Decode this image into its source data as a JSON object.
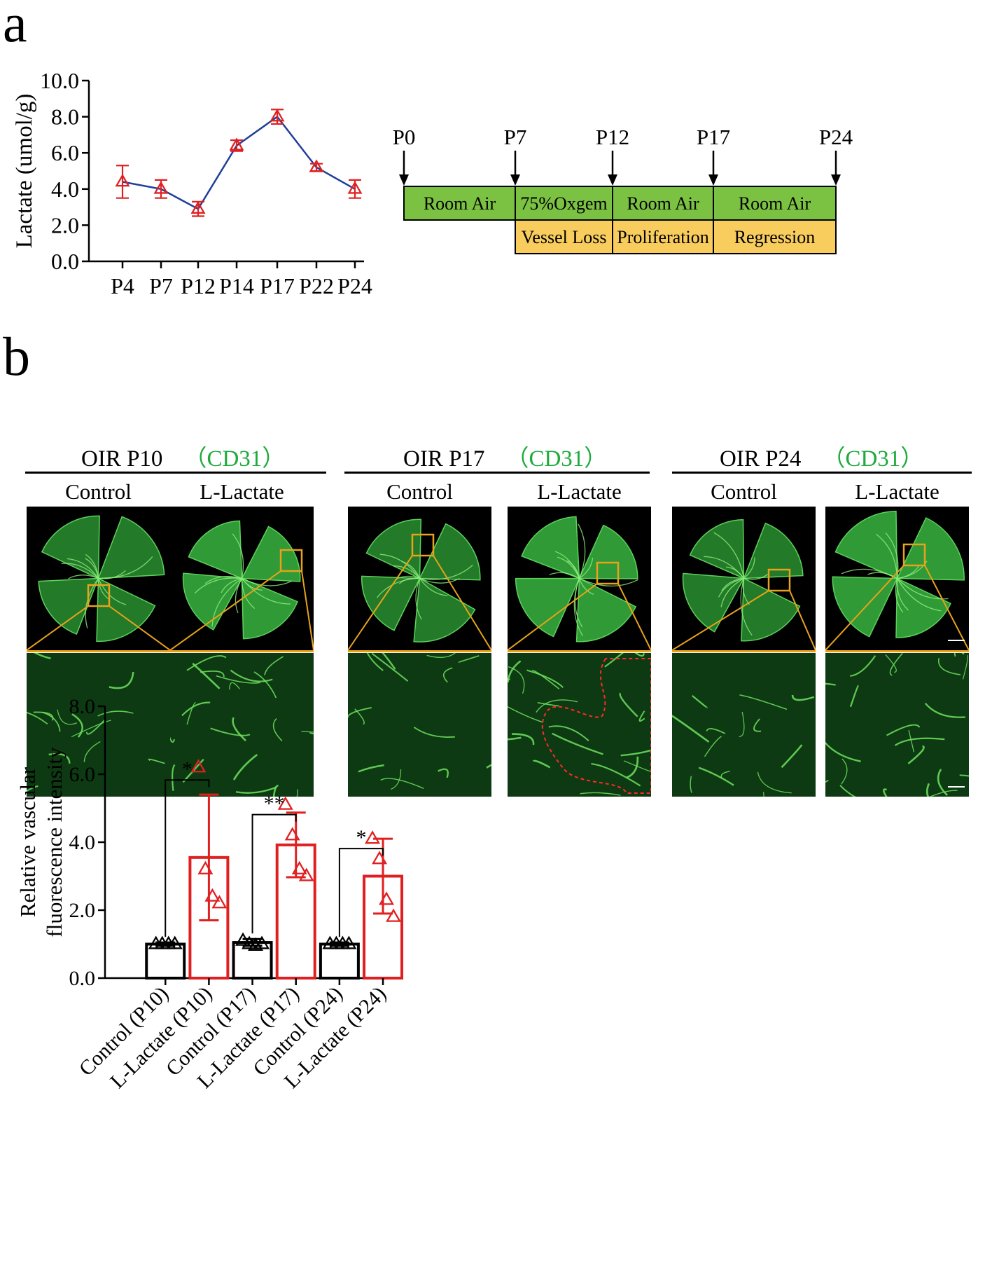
{
  "panel_a": {
    "letter": "a",
    "chart": {
      "ylabel": "Lactate (umol/g)",
      "ytick_labels": [
        "0.0",
        "2.0",
        "4.0",
        "6.0",
        "8.0",
        "10.0"
      ]
    },
    "timeline": {
      "markers": [
        "P0",
        "P7",
        "P12",
        "P17",
        "P24"
      ],
      "phases": [
        "Room Air",
        "75%Oxgem",
        "Room Air",
        "Room Air"
      ],
      "stages": [
        "Vessel Loss",
        "Proliferation",
        "Regression"
      ],
      "colors": {
        "phase": "#7cc242",
        "stage": "#f8cd5e"
      }
    }
  },
  "panel_b": {
    "letter": "b",
    "groups": [
      {
        "title": "OIR P10",
        "stain": "（CD31）",
        "conditions": [
          "Control",
          "L-Lactate"
        ]
      },
      {
        "title": "OIR P17",
        "stain": "（CD31）",
        "conditions": [
          "Control",
          "L-Lactate"
        ]
      },
      {
        "title": "OIR P24",
        "stain": "（CD31）",
        "conditions": [
          "Control",
          "L-Lactate"
        ]
      }
    ],
    "chart": {
      "ylabel_lines": [
        "Relative vascular",
        "fluorescence intensity"
      ],
      "ytick_labels": [
        "0.0",
        "2.0",
        "4.0",
        "6.0",
        "8.0"
      ],
      "significance": [
        "*",
        "**",
        "*"
      ]
    }
  },
  "chart_data": [
    {
      "type": "line",
      "title": "",
      "xlabel": "",
      "ylabel": "Lactate (umol/g)",
      "categories": [
        "P4",
        "P7",
        "P12",
        "P14",
        "P17",
        "P22",
        "P24"
      ],
      "values": [
        4.4,
        4.0,
        2.9,
        6.4,
        8.0,
        5.2,
        4.0
      ],
      "error": [
        0.9,
        0.5,
        0.4,
        0.3,
        0.4,
        0.2,
        0.5
      ],
      "ylim": [
        0,
        10
      ],
      "yticks": [
        0,
        2,
        4,
        6,
        8,
        10
      ],
      "grid": false,
      "colors": {
        "line": "#1f3f99",
        "marker": "#e02020"
      }
    },
    {
      "type": "bar",
      "title": "",
      "xlabel": "",
      "ylabel": "Relative vascular fluorescence intensity",
      "categories": [
        "Control (P10)",
        "L-Lactate (P10)",
        "Control (P17)",
        "L-Lactate (P17)",
        "Control (P24)",
        "L-Lactate (P24)"
      ],
      "values": [
        1.0,
        3.55,
        1.05,
        3.92,
        1.0,
        3.0
      ],
      "error": [
        0.05,
        1.85,
        0.1,
        0.95,
        0.05,
        1.1
      ],
      "points": [
        [
          1.0,
          1.0,
          1.0,
          1.0
        ],
        [
          6.2,
          3.2,
          2.4,
          2.2
        ],
        [
          1.1,
          1.0,
          0.95,
          1.0
        ],
        [
          5.1,
          4.2,
          3.2,
          3.0
        ],
        [
          1.0,
          1.0,
          1.0,
          1.0
        ],
        [
          4.1,
          3.5,
          2.3,
          1.8
        ]
      ],
      "comparisons": [
        {
          "between": [
            "Control (P10)",
            "L-Lactate (P10)"
          ],
          "label": "*"
        },
        {
          "between": [
            "Control (P17)",
            "L-Lactate (P17)"
          ],
          "label": "**"
        },
        {
          "between": [
            "Control (P24)",
            "L-Lactate (P24)"
          ],
          "label": "*"
        }
      ],
      "ylim": [
        0,
        8
      ],
      "yticks": [
        0,
        2,
        4,
        6,
        8
      ],
      "grid": false,
      "colors": {
        "control": "#000000",
        "lactate": "#e02020"
      }
    }
  ]
}
